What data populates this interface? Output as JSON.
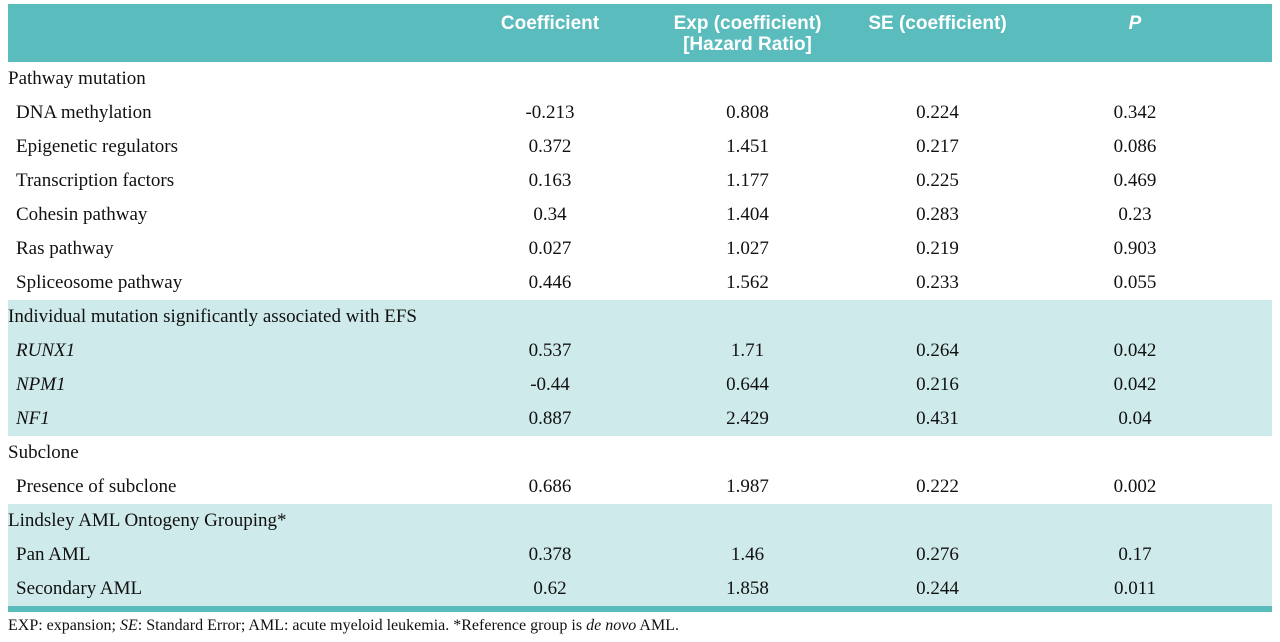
{
  "colors": {
    "header_teal": "#5bbcbd",
    "band_teal": "#cfeaea"
  },
  "table": {
    "headers": {
      "coefficient": "Coefficient",
      "exp_line1": "Exp (coefficient)",
      "exp_line2": "[Hazard Ratio]",
      "se": "SE (coefficient)",
      "p": "P"
    },
    "header_keys": [
      "coefficient",
      "exp-coefficient",
      "se-coefficient",
      "p-value"
    ],
    "sections": [
      {
        "title": "Pathway mutation",
        "shaded": false,
        "rows": [
          {
            "label": "DNA methylation",
            "italic": false,
            "values": [
              "-0.213",
              "0.808",
              "0.224",
              "0.342"
            ]
          },
          {
            "label": "Epigenetic regulators",
            "italic": false,
            "values": [
              "0.372",
              "1.451",
              "0.217",
              "0.086"
            ]
          },
          {
            "label": "Transcription factors",
            "italic": false,
            "values": [
              "0.163",
              "1.177",
              "0.225",
              "0.469"
            ]
          },
          {
            "label": "Cohesin pathway",
            "italic": false,
            "values": [
              "0.34",
              "1.404",
              "0.283",
              "0.23"
            ]
          },
          {
            "label": "Ras pathway",
            "italic": false,
            "values": [
              "0.027",
              "1.027",
              "0.219",
              "0.903"
            ]
          },
          {
            "label": "Spliceosome pathway",
            "italic": false,
            "values": [
              "0.446",
              "1.562",
              "0.233",
              "0.055"
            ]
          }
        ]
      },
      {
        "title": "Individual mutation significantly associated with EFS",
        "shaded": true,
        "rows": [
          {
            "label": "RUNX1",
            "italic": true,
            "values": [
              "0.537",
              "1.71",
              "0.264",
              "0.042"
            ]
          },
          {
            "label": "NPM1",
            "italic": true,
            "values": [
              "-0.44",
              "0.644",
              "0.216",
              "0.042"
            ]
          },
          {
            "label": "NF1",
            "italic": true,
            "values": [
              "0.887",
              "2.429",
              "0.431",
              "0.04"
            ]
          }
        ]
      },
      {
        "title": "Subclone",
        "shaded": false,
        "rows": [
          {
            "label": "Presence of subclone",
            "italic": false,
            "values": [
              "0.686",
              "1.987",
              "0.222",
              "0.002"
            ]
          }
        ]
      },
      {
        "title": "Lindsley AML Ontogeny Grouping*",
        "shaded": true,
        "rows": [
          {
            "label": "Pan AML",
            "italic": false,
            "values": [
              "0.378",
              "1.46",
              "0.276",
              "0.17"
            ]
          },
          {
            "label": "Secondary AML",
            "italic": false,
            "values": [
              "0.62",
              "1.858",
              "0.244",
              "0.011"
            ]
          }
        ]
      }
    ],
    "footnote_segments": [
      {
        "text": "EXP: expansion; ",
        "italic": false
      },
      {
        "text": "SE",
        "italic": true
      },
      {
        "text": ": Standard Error; AML: acute myeloid leukemia. *Reference group is ",
        "italic": false
      },
      {
        "text": "de novo",
        "italic": true
      },
      {
        "text": " AML.",
        "italic": false
      }
    ]
  }
}
